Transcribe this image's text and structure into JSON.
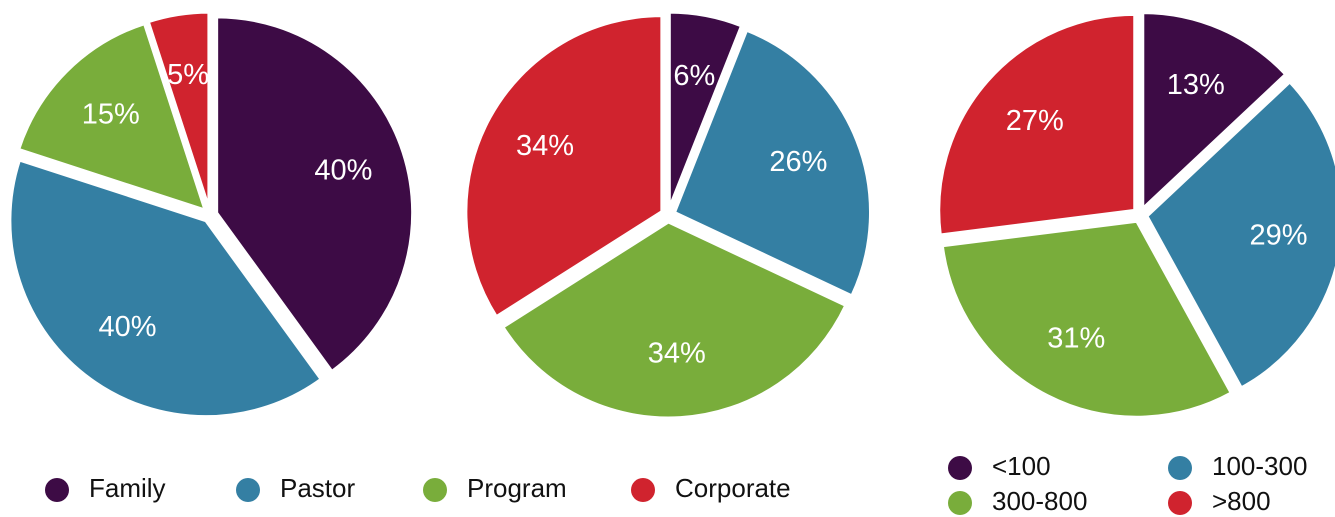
{
  "chart_data": [
    {
      "type": "pie",
      "categories": [
        "Family",
        "Pastor",
        "Program",
        "Corporate"
      ],
      "colors": [
        "#3d0b45",
        "#347fa3",
        "#79ad3b",
        "#d0232e"
      ],
      "series": [
        {
          "values": [
            40,
            40,
            15,
            5
          ],
          "value_labels": [
            "40%",
            "40%",
            "15%",
            "5%"
          ]
        },
        {
          "values": [
            6,
            26,
            34,
            34
          ],
          "value_labels": [
            "6%",
            "26%",
            "34%",
            "34%"
          ]
        }
      ],
      "legend": "bottom"
    },
    {
      "type": "pie",
      "categories": [
        "<100",
        "100-300",
        "300-800",
        ">800"
      ],
      "colors": [
        "#3d0b45",
        "#347fa3",
        "#79ad3b",
        "#d0232e"
      ],
      "series": [
        {
          "values": [
            13,
            29,
            31,
            27
          ],
          "value_labels": [
            "13%",
            "29%",
            "31%",
            "27%"
          ]
        }
      ],
      "legend": "bottom"
    }
  ]
}
